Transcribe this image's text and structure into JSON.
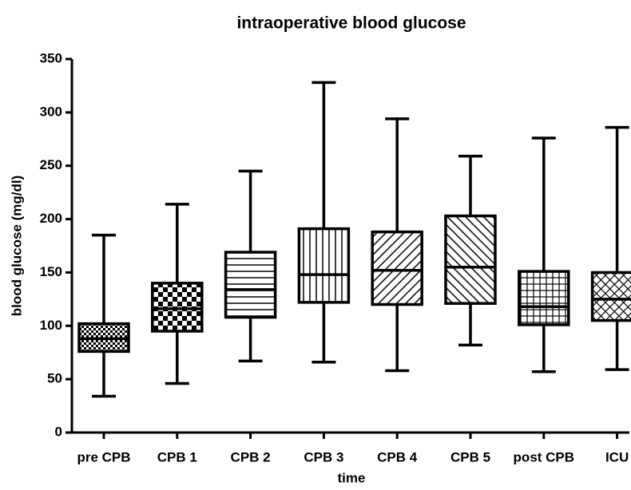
{
  "chart_data": {
    "type": "box",
    "title": "intraoperative blood glucose",
    "x_label": "time",
    "y_label": "blood glucose (mg/dl)",
    "categories": [
      "pre CPB",
      "CPB 1",
      "CPB 2",
      "CPB 3",
      "CPB 4",
      "CPB 5",
      "post CPB",
      "ICU"
    ],
    "stats": [
      {
        "min": 34,
        "q1": 76,
        "median": 88,
        "q3": 102,
        "max": 185
      },
      {
        "min": 46,
        "q1": 95,
        "median": 116,
        "q3": 140,
        "max": 214
      },
      {
        "min": 67,
        "q1": 108,
        "median": 134,
        "q3": 169,
        "max": 245
      },
      {
        "min": 66,
        "q1": 122,
        "median": 148,
        "q3": 191,
        "max": 328
      },
      {
        "min": 58,
        "q1": 120,
        "median": 152,
        "q3": 188,
        "max": 294
      },
      {
        "min": 82,
        "q1": 121,
        "median": 155,
        "q3": 203,
        "max": 259
      },
      {
        "min": 57,
        "q1": 101,
        "median": 118,
        "q3": 151,
        "max": 276
      },
      {
        "min": 59,
        "q1": 105,
        "median": 125,
        "q3": 150,
        "max": 286
      }
    ],
    "color": "#000000",
    "ylim": [
      0,
      350
    ],
    "yticks": [
      0,
      50,
      100,
      150,
      200,
      250,
      300,
      350
    ]
  }
}
